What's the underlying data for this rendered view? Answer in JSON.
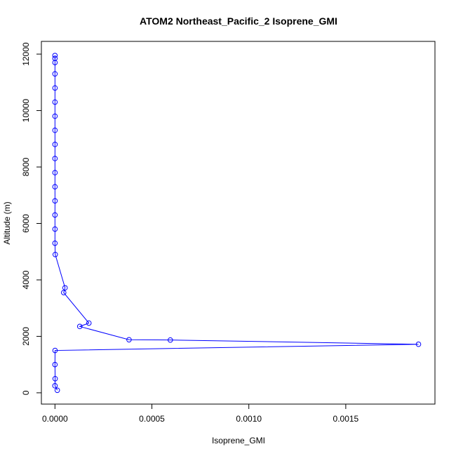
{
  "chart_data": {
    "type": "line",
    "title": "ATOM2 Northeast_Pacific_2 Isoprene_GMI",
    "xlabel": "Isoprene_GMI",
    "ylabel": "Altitude (m)",
    "xlim": [
      -7e-05,
      0.00196
    ],
    "ylim": [
      -400,
      12450
    ],
    "x_ticks": [
      0,
      0.0005,
      0.001,
      0.0015
    ],
    "x_tick_labels": [
      "0.0000",
      "0.0005",
      "0.0010",
      "0.0015"
    ],
    "y_ticks": [
      0,
      2000,
      4000,
      6000,
      8000,
      10000,
      12000
    ],
    "y_tick_labels": [
      "0",
      "2000",
      "4000",
      "6000",
      "8000",
      "10000",
      "12000"
    ],
    "grid": false,
    "marker": "open-circle",
    "series_color": "#0000ff",
    "series": [
      {
        "points": [
          {
            "x": 0.0,
            "y": 11950
          },
          {
            "x": 0.0,
            "y": 11850
          },
          {
            "x": 1e-07,
            "y": 11700
          },
          {
            "x": 0.0,
            "y": 11300
          },
          {
            "x": 2e-07,
            "y": 10800
          },
          {
            "x": 0.0,
            "y": 10300
          },
          {
            "x": 1e-07,
            "y": 9800
          },
          {
            "x": 0.0,
            "y": 9300
          },
          {
            "x": 2e-07,
            "y": 8800
          },
          {
            "x": 0.0,
            "y": 8300
          },
          {
            "x": 1e-07,
            "y": 7800
          },
          {
            "x": 0.0,
            "y": 7300
          },
          {
            "x": 2e-07,
            "y": 6800
          },
          {
            "x": 0.0,
            "y": 6300
          },
          {
            "x": 1e-07,
            "y": 5800
          },
          {
            "x": 0.0,
            "y": 5300
          },
          {
            "x": 1.5e-06,
            "y": 4900
          },
          {
            "x": 5.2e-05,
            "y": 3720
          },
          {
            "x": 4.5e-05,
            "y": 3550
          },
          {
            "x": 0.000175,
            "y": 2470
          },
          {
            "x": 0.000128,
            "y": 2350
          },
          {
            "x": 0.000382,
            "y": 1880
          },
          {
            "x": 0.000595,
            "y": 1870
          },
          {
            "x": 0.001875,
            "y": 1720
          },
          {
            "x": 5e-07,
            "y": 1500
          },
          {
            "x": 0.0,
            "y": 1000
          },
          {
            "x": 1e-06,
            "y": 500
          },
          {
            "x": 0.0,
            "y": 250
          },
          {
            "x": 1.2e-05,
            "y": 90
          }
        ]
      }
    ]
  }
}
